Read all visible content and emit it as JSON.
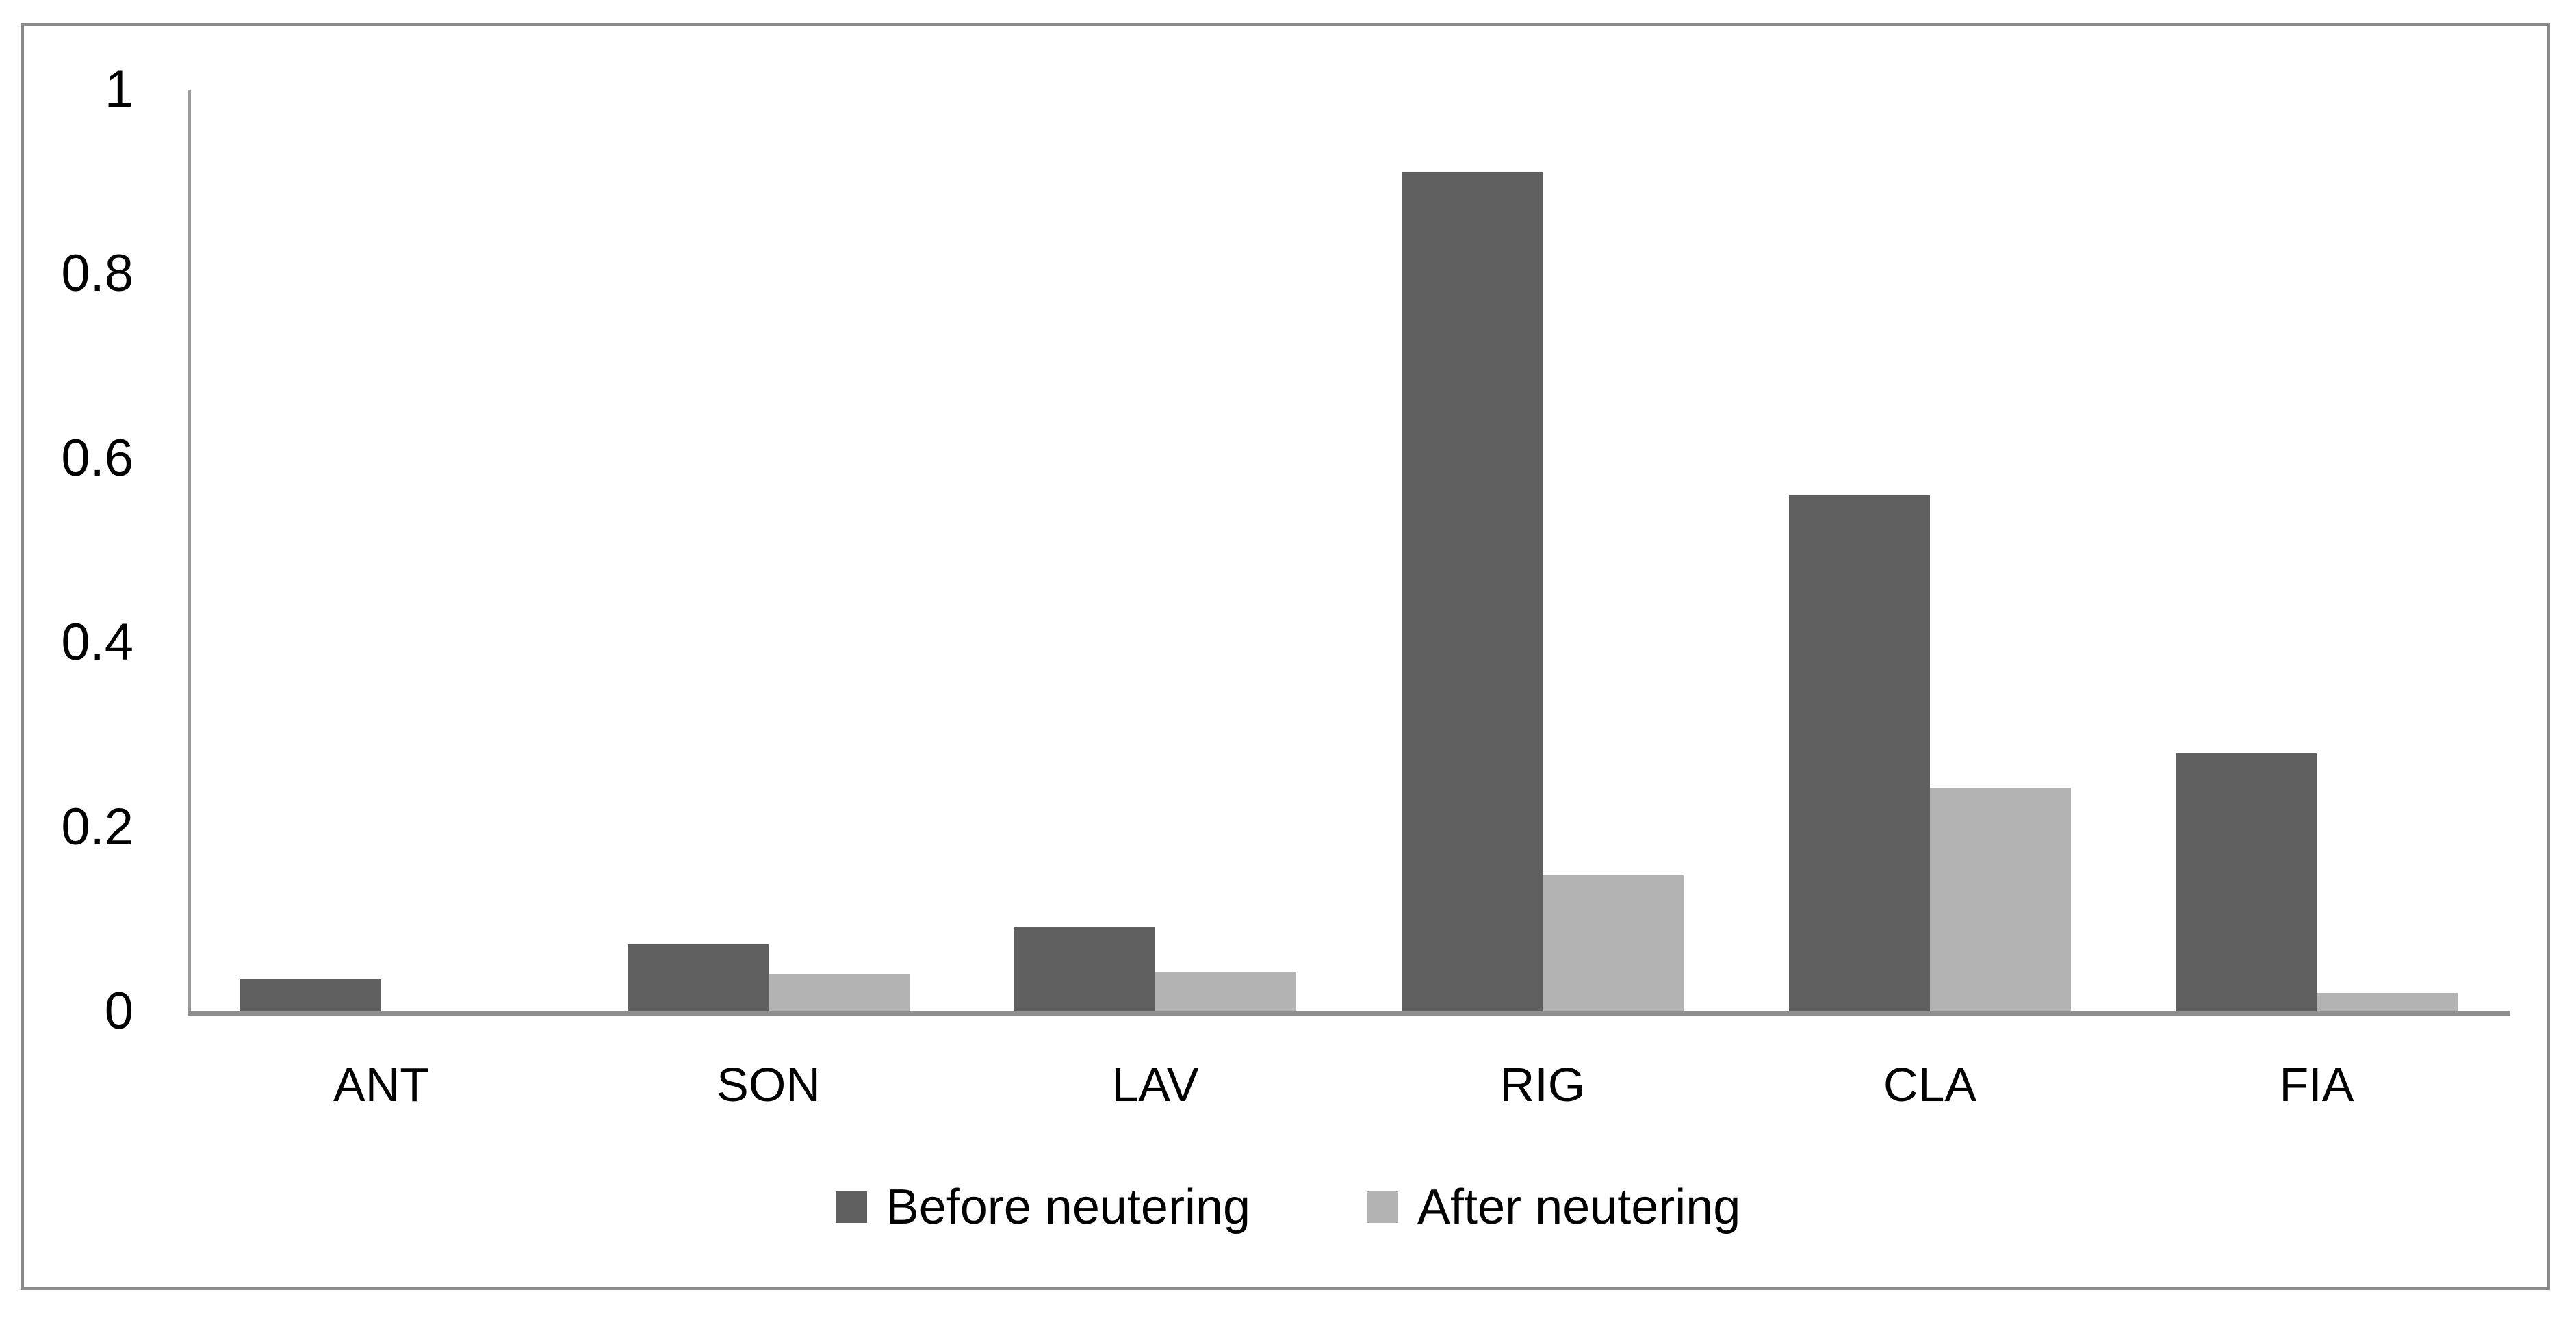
{
  "figure": {
    "background_color": "#ffffff",
    "frame_border_color": "#8a8a8a",
    "axis_line_color": "#9a9a9a",
    "text_color": "#000000",
    "title": ""
  },
  "legend": {
    "position": "bottom",
    "items": [
      {
        "label": "Before neutering",
        "color": "#5f5f5f"
      },
      {
        "label": "After neutering",
        "color": "#b3b3b3"
      }
    ]
  },
  "chart_data": {
    "type": "bar",
    "title": "",
    "xlabel": "",
    "ylabel": "",
    "categories": [
      "ANT",
      "SON",
      "LAV",
      "RIG",
      "CLA",
      "FIA"
    ],
    "series": [
      {
        "name": "Before neutering",
        "color": "#5f5f5f",
        "values": [
          0.035,
          0.073,
          0.091,
          0.91,
          0.56,
          0.28
        ]
      },
      {
        "name": "After neutering",
        "color": "#b3b3b3",
        "values": [
          0,
          0.04,
          0.042,
          0.148,
          0.243,
          0.02
        ]
      }
    ],
    "ylim": [
      0,
      1
    ],
    "yticks": [
      1,
      0.8,
      0.6,
      0.4,
      0.2,
      0
    ],
    "ytick_labels": [
      "1",
      "0.8",
      "0.6",
      "0.4",
      "0.2",
      "0"
    ],
    "grid": false,
    "tick_marks": false,
    "legend_position": "bottom"
  }
}
